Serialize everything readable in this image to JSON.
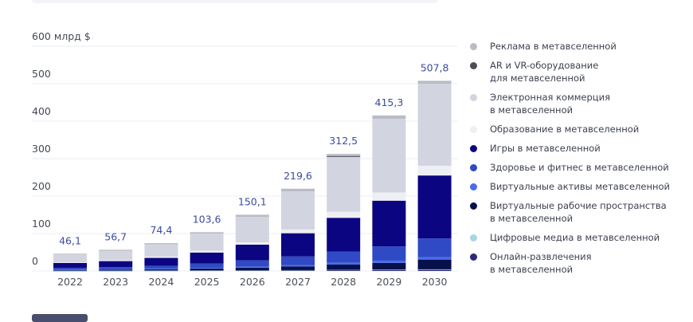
{
  "chart_data": {
    "type": "bar",
    "stacked": true,
    "title": "",
    "ylabel": "млрд $",
    "xlabel": "",
    "ylim": [
      0,
      600
    ],
    "yticks": [
      0,
      100,
      200,
      300,
      400,
      500,
      600
    ],
    "ytick_labels": [
      "0",
      "100",
      "200",
      "300",
      "400",
      "500",
      "600 млрд $"
    ],
    "grid": true,
    "legend_position": "right",
    "categories": [
      "2022",
      "2023",
      "2024",
      "2025",
      "2026",
      "2027",
      "2028",
      "2029",
      "2030"
    ],
    "totals": [
      46.1,
      56.7,
      74.4,
      103.6,
      150.1,
      219.6,
      312.5,
      415.3,
      507.8
    ],
    "total_labels": [
      "46,1",
      "56,7",
      "74,4",
      "103,6",
      "150,1",
      "219,6",
      "312,5",
      "415,3",
      "507,8"
    ],
    "series": [
      {
        "name": "Онлайн-развлечения\nв метавселенной",
        "color": "#2b2a78",
        "values": [
          0.5,
          0.6,
          0.8,
          1.0,
          1.2,
          1.5,
          2.0,
          2.5,
          3.0
        ]
      },
      {
        "name": "Цифровые медиа в метавселенной",
        "color": "#a9d4e6",
        "values": [
          0.3,
          0.3,
          0.4,
          0.5,
          0.6,
          0.8,
          1.0,
          1.2,
          1.5
        ]
      },
      {
        "name": "Виртуальные рабочие пространства\nв метавселенной",
        "color": "#06104a",
        "values": [
          2.0,
          2.5,
          3.5,
          5.0,
          7.0,
          10.0,
          14.0,
          18.0,
          26.0
        ]
      },
      {
        "name": "Виртуальные активы метавселенной",
        "color": "#4a6bec",
        "values": [
          0.8,
          1.0,
          1.3,
          1.8,
          2.5,
          3.5,
          5.0,
          6.0,
          6.5
        ]
      },
      {
        "name": "Здоровье и фитнес в метавселенной",
        "color": "#2f4ac4",
        "values": [
          5.0,
          6.0,
          8.0,
          12.0,
          17.0,
          23.0,
          30.0,
          38.0,
          50.0
        ]
      },
      {
        "name": "Игры в метавселенной",
        "color": "#0c0582",
        "values": [
          13.0,
          16.0,
          21.0,
          29.0,
          42.0,
          62.0,
          90.0,
          122.0,
          168.0
        ]
      },
      {
        "name": "Образование в метавселенной",
        "color": "#eeeff4",
        "values": [
          2.0,
          2.5,
          3.4,
          4.8,
          6.0,
          10.0,
          16.0,
          22.0,
          26.0
        ]
      },
      {
        "name": "Электронная коммерция\nв метавселенной",
        "color": "#d2d5df",
        "values": [
          20.5,
          25.0,
          32.7,
          45.5,
          68.3,
          101.8,
          146.5,
          196.6,
          218.8
        ]
      },
      {
        "name": "AR и VR-оборудование\nдля метавселенной",
        "color": "#4a4d55",
        "values": [
          0,
          0,
          0,
          0,
          0,
          0,
          2.5,
          0,
          0
        ]
      },
      {
        "name": "Реклама в метавселенной",
        "color": "#b9bcc6",
        "values": [
          2.0,
          2.8,
          3.3,
          4.0,
          5.5,
          7.0,
          5.5,
          9.0,
          8.0
        ]
      }
    ]
  },
  "legend": [
    {
      "label": "Реклама в метавселенной",
      "color": "#b9bcc6"
    },
    {
      "label": "AR и VR-оборудование\nдля метавселенной",
      "color": "#4a4d55"
    },
    {
      "label": "Электронная коммерция\nв метавселенной",
      "color": "#d2d5df"
    },
    {
      "label": "Образование в метавселенной",
      "color": "#eeeff4"
    },
    {
      "label": "Игры в метавселенной",
      "color": "#0c0582"
    },
    {
      "label": "Здоровье и фитнес в метавселенной",
      "color": "#2f4ac4"
    },
    {
      "label": "Виртуальные активы метавселенной",
      "color": "#4a6bec"
    },
    {
      "label": "Виртуальные рабочие пространства\nв метавселенной",
      "color": "#06104a"
    },
    {
      "label": "Цифровые медиа в метавселенной",
      "color": "#a9d4e6"
    },
    {
      "label": "Онлайн-развлечения\nв метавселенной",
      "color": "#2b2a78"
    }
  ]
}
